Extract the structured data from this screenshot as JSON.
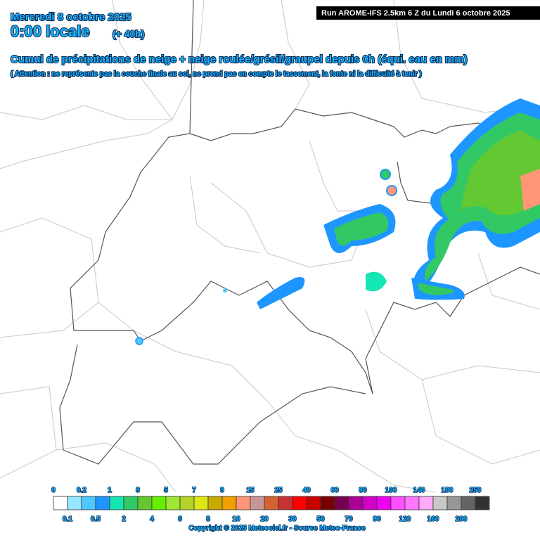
{
  "header": {
    "date": "Mercredi 8 octobre 2025",
    "time": "0:00 locale",
    "lead": "(+ 40h)",
    "run": "Run AROME-IFS 2.5km 6 Z du Lundi 6 octobre 2025",
    "title": "Cumul de précipitations de neige + neige roulée/grésil/graupel depuis 0h (équi. eau en mm)",
    "note": "( Attention : ne représente pas la couche finale au sol, ne prend pas en compte le tassement, la fonte ni la difficulté à tenir )"
  },
  "legend": {
    "thresholds": [
      0,
      0.1,
      0.2,
      0.5,
      1,
      2,
      3,
      4,
      5,
      6,
      7,
      8,
      9,
      10,
      15,
      20,
      25,
      30,
      40,
      50,
      60,
      70,
      80,
      90,
      100,
      120,
      140,
      160,
      180,
      200,
      250
    ],
    "colors": [
      "#ffffff",
      "#96e6ff",
      "#50c8ff",
      "#1e96ff",
      "#14e6b4",
      "#32c864",
      "#64c832",
      "#64f000",
      "#a0e632",
      "#b4d228",
      "#dce614",
      "#c8aa00",
      "#f0a000",
      "#ff9678",
      "#c89696",
      "#d26432",
      "#c83232",
      "#ff0000",
      "#c80000",
      "#780000",
      "#780050",
      "#aa0096",
      "#d200c8",
      "#f000f0",
      "#ff50ff",
      "#ff78ff",
      "#ffaaff",
      "#c8c8c8",
      "#969696",
      "#646464",
      "#323232"
    ]
  },
  "footer": {
    "copyright": "Copyright © 2025 Meteociel.fr - Source Meteo-France"
  }
}
